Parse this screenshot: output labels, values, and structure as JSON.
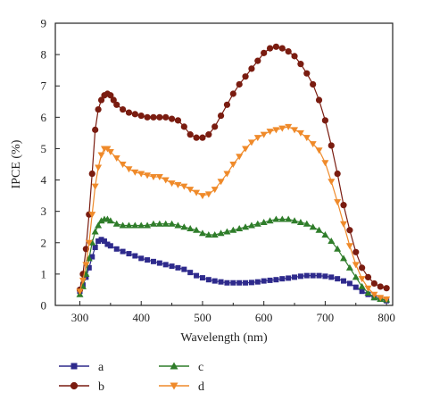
{
  "chart_data": {
    "type": "line",
    "xlabel": "Wavelength (nm)",
    "ylabel": "IPCE (%)",
    "xlim": [
      260,
      810
    ],
    "ylim": [
      0,
      9
    ],
    "xticks": [
      300,
      400,
      500,
      600,
      700,
      800
    ],
    "yticks": [
      0,
      1,
      2,
      3,
      4,
      5,
      6,
      7,
      8,
      9
    ],
    "grid": false,
    "legend_position": "bottom",
    "series": [
      {
        "name": "a",
        "color": "#2e2a8c",
        "marker": "square",
        "x": [
          300,
          305,
          310,
          315,
          320,
          325,
          330,
          335,
          340,
          345,
          350,
          360,
          370,
          380,
          390,
          400,
          410,
          420,
          430,
          440,
          450,
          460,
          470,
          480,
          490,
          500,
          510,
          520,
          530,
          540,
          550,
          560,
          570,
          580,
          590,
          600,
          610,
          620,
          630,
          640,
          650,
          660,
          670,
          680,
          690,
          700,
          710,
          720,
          730,
          740,
          750,
          760,
          770,
          780,
          790,
          800
        ],
        "y": [
          0.45,
          0.65,
          0.9,
          1.2,
          1.55,
          1.85,
          2.05,
          2.1,
          2.05,
          1.95,
          1.9,
          1.8,
          1.72,
          1.65,
          1.58,
          1.5,
          1.45,
          1.4,
          1.35,
          1.3,
          1.25,
          1.2,
          1.15,
          1.05,
          0.95,
          0.88,
          0.82,
          0.78,
          0.75,
          0.72,
          0.72,
          0.72,
          0.72,
          0.73,
          0.75,
          0.78,
          0.8,
          0.82,
          0.85,
          0.87,
          0.9,
          0.93,
          0.95,
          0.95,
          0.95,
          0.93,
          0.9,
          0.85,
          0.78,
          0.7,
          0.58,
          0.45,
          0.35,
          0.25,
          0.2,
          0.15
        ]
      },
      {
        "name": "b",
        "color": "#7a1c10",
        "marker": "circle",
        "x": [
          300,
          305,
          310,
          315,
          320,
          325,
          330,
          335,
          340,
          345,
          350,
          355,
          360,
          370,
          380,
          390,
          400,
          410,
          420,
          430,
          440,
          450,
          460,
          470,
          480,
          490,
          500,
          510,
          520,
          530,
          540,
          550,
          560,
          570,
          580,
          590,
          600,
          610,
          620,
          630,
          640,
          650,
          660,
          670,
          680,
          690,
          700,
          710,
          720,
          730,
          740,
          750,
          760,
          770,
          780,
          790,
          800
        ],
        "y": [
          0.5,
          1.0,
          1.8,
          2.9,
          4.2,
          5.6,
          6.25,
          6.55,
          6.7,
          6.75,
          6.7,
          6.55,
          6.4,
          6.25,
          6.15,
          6.1,
          6.05,
          6.0,
          6.0,
          6.0,
          6.0,
          5.95,
          5.9,
          5.7,
          5.45,
          5.35,
          5.35,
          5.45,
          5.7,
          6.05,
          6.4,
          6.75,
          7.05,
          7.3,
          7.55,
          7.8,
          8.05,
          8.2,
          8.25,
          8.2,
          8.1,
          7.95,
          7.7,
          7.4,
          7.05,
          6.55,
          5.9,
          5.1,
          4.2,
          3.2,
          2.4,
          1.7,
          1.2,
          0.9,
          0.7,
          0.6,
          0.55
        ]
      },
      {
        "name": "c",
        "color": "#2f7d2a",
        "marker": "triangle-up",
        "x": [
          300,
          305,
          310,
          315,
          320,
          325,
          330,
          335,
          340,
          345,
          350,
          360,
          370,
          380,
          390,
          400,
          410,
          420,
          430,
          440,
          450,
          460,
          470,
          480,
          490,
          500,
          510,
          520,
          530,
          540,
          550,
          560,
          570,
          580,
          590,
          600,
          610,
          620,
          630,
          640,
          650,
          660,
          670,
          680,
          690,
          700,
          710,
          720,
          730,
          740,
          750,
          760,
          770,
          780,
          790,
          800
        ],
        "y": [
          0.35,
          0.6,
          1.0,
          1.5,
          2.0,
          2.35,
          2.55,
          2.7,
          2.75,
          2.75,
          2.7,
          2.6,
          2.55,
          2.55,
          2.55,
          2.55,
          2.55,
          2.6,
          2.6,
          2.6,
          2.6,
          2.55,
          2.5,
          2.45,
          2.4,
          2.3,
          2.25,
          2.25,
          2.3,
          2.35,
          2.4,
          2.45,
          2.5,
          2.55,
          2.6,
          2.65,
          2.7,
          2.75,
          2.75,
          2.75,
          2.7,
          2.65,
          2.6,
          2.5,
          2.4,
          2.25,
          2.05,
          1.8,
          1.5,
          1.2,
          0.9,
          0.6,
          0.4,
          0.25,
          0.2,
          0.18
        ]
      },
      {
        "name": "d",
        "color": "#ef8a2a",
        "marker": "triangle-down",
        "x": [
          300,
          305,
          310,
          315,
          320,
          325,
          330,
          335,
          340,
          345,
          350,
          360,
          370,
          380,
          390,
          400,
          410,
          420,
          430,
          440,
          450,
          460,
          470,
          480,
          490,
          500,
          510,
          520,
          530,
          540,
          550,
          560,
          570,
          580,
          590,
          600,
          610,
          620,
          630,
          640,
          650,
          660,
          670,
          680,
          690,
          700,
          710,
          720,
          730,
          740,
          750,
          760,
          770,
          780,
          790,
          800
        ],
        "y": [
          0.45,
          0.8,
          1.3,
          2.0,
          2.9,
          3.8,
          4.4,
          4.8,
          5.0,
          5.0,
          4.9,
          4.7,
          4.5,
          4.35,
          4.25,
          4.2,
          4.15,
          4.1,
          4.1,
          4.0,
          3.9,
          3.85,
          3.8,
          3.7,
          3.6,
          3.5,
          3.55,
          3.7,
          3.95,
          4.2,
          4.5,
          4.75,
          5.0,
          5.2,
          5.35,
          5.45,
          5.55,
          5.6,
          5.65,
          5.7,
          5.6,
          5.5,
          5.35,
          5.15,
          4.95,
          4.55,
          3.95,
          3.3,
          2.6,
          1.9,
          1.3,
          0.85,
          0.55,
          0.35,
          0.25,
          0.2
        ]
      }
    ]
  }
}
